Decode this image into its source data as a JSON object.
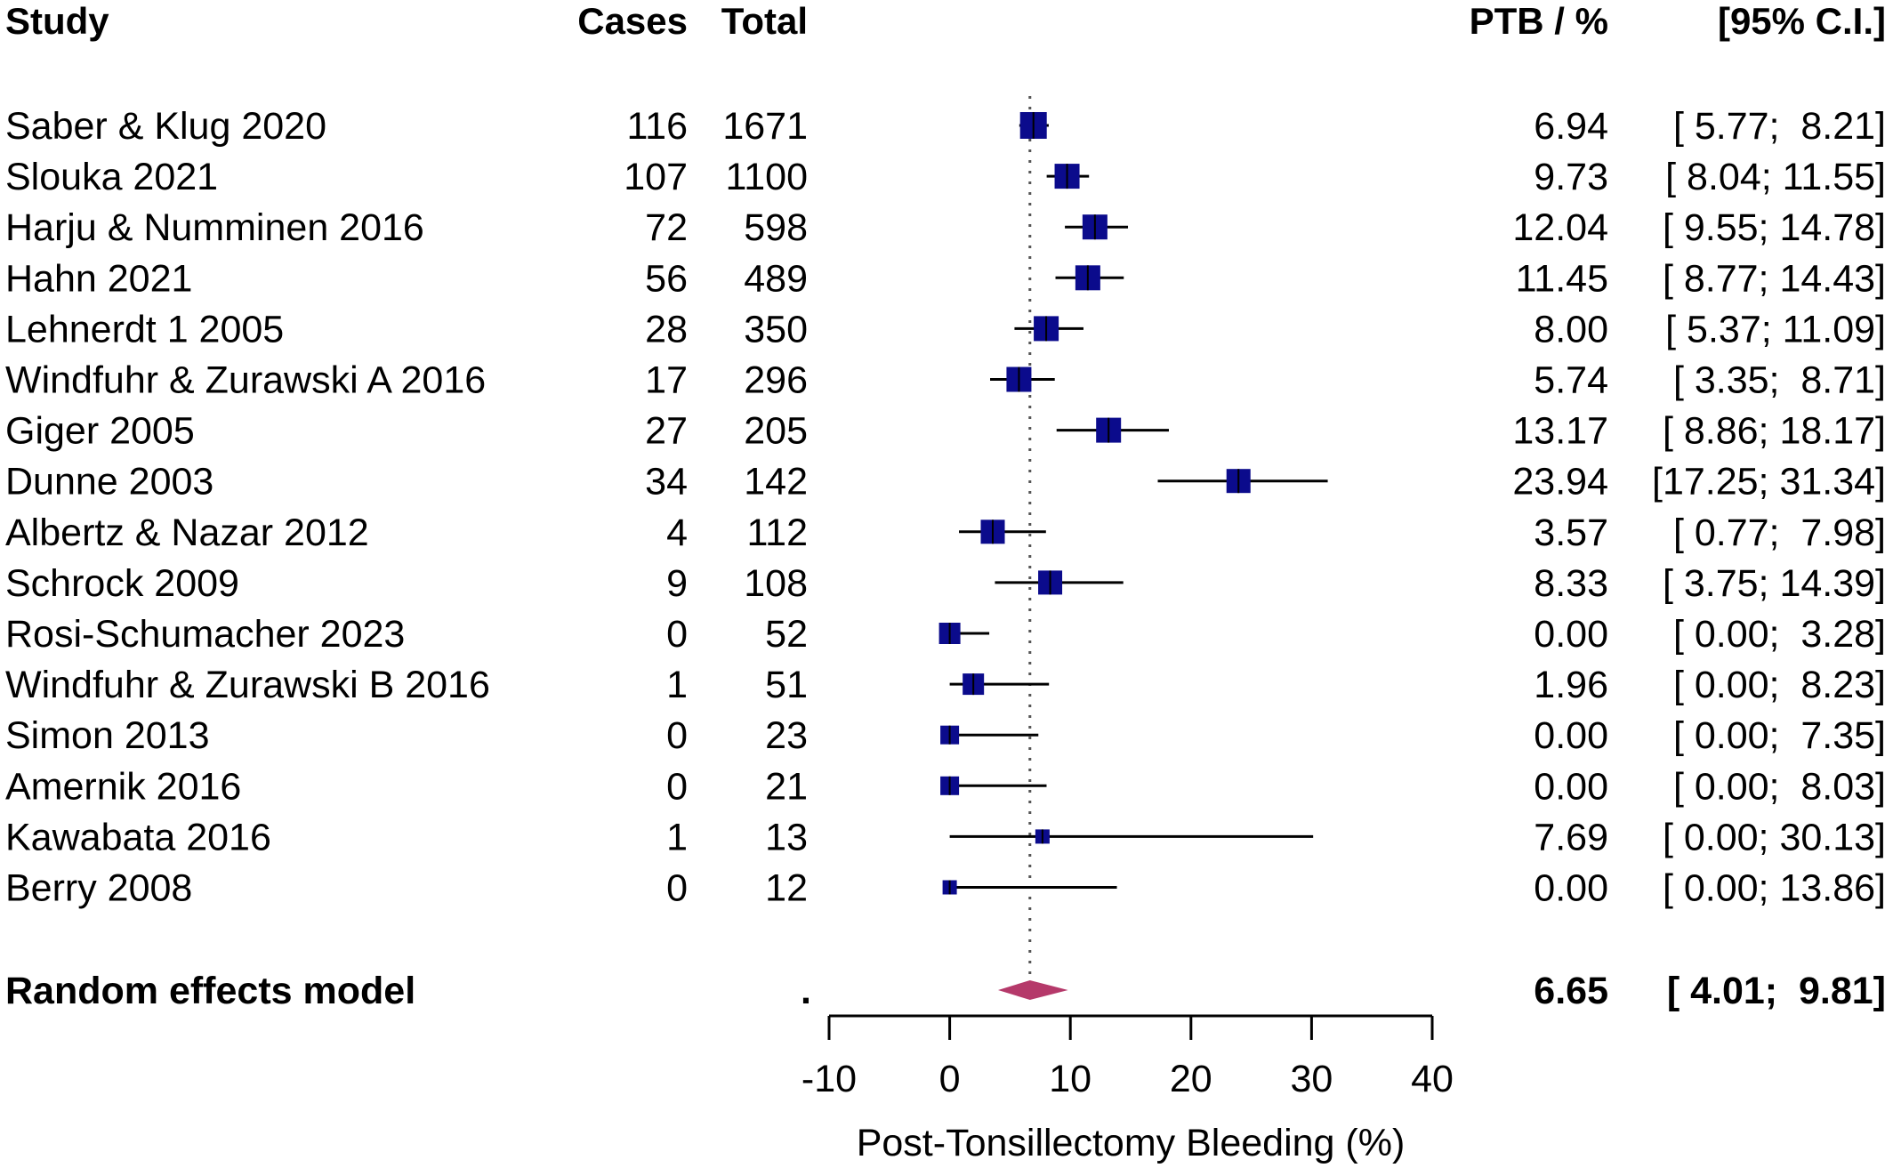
{
  "headers": {
    "study": "Study",
    "cases": "Cases",
    "total": "Total",
    "ptb": "PTB / %",
    "ci": "[95% C.I.]"
  },
  "chart_data": {
    "type": "forest",
    "xlabel": "Post-Tonsillectomy Bleeding (%)",
    "xlim": [
      -10,
      40
    ],
    "xticks": [
      "-10",
      "0",
      "10",
      "20",
      "30",
      "40"
    ],
    "studies": [
      {
        "name": "Saber & Klug 2020",
        "cases": "116",
        "total": "1671",
        "est": 6.94,
        "lo": 5.77,
        "hi": 8.21,
        "est_text": "6.94",
        "ci_text": "[ 5.77;  8.21]",
        "box": 30
      },
      {
        "name": "Slouka 2021",
        "cases": "107",
        "total": "1100",
        "est": 9.73,
        "lo": 8.04,
        "hi": 11.55,
        "est_text": "9.73",
        "ci_text": "[ 8.04; 11.55]",
        "box": 28
      },
      {
        "name": "Harju & Numminen 2016",
        "cases": "72",
        "total": "598",
        "est": 12.04,
        "lo": 9.55,
        "hi": 14.78,
        "est_text": "12.04",
        "ci_text": "[ 9.55; 14.78]",
        "box": 28
      },
      {
        "name": "Hahn 2021",
        "cases": "56",
        "total": "489",
        "est": 11.45,
        "lo": 8.77,
        "hi": 14.43,
        "est_text": "11.45",
        "ci_text": "[ 8.77; 14.43]",
        "box": 28
      },
      {
        "name": "Lehnerdt 1 2005",
        "cases": "28",
        "total": "350",
        "est": 8.0,
        "lo": 5.37,
        "hi": 11.09,
        "est_text": "8.00",
        "ci_text": "[ 5.37; 11.09]",
        "box": 28
      },
      {
        "name": "Windfuhr & Zurawski A 2016",
        "cases": "17",
        "total": "296",
        "est": 5.74,
        "lo": 3.35,
        "hi": 8.71,
        "est_text": "5.74",
        "ci_text": "[ 3.35;  8.71]",
        "box": 28
      },
      {
        "name": "Giger 2005",
        "cases": "27",
        "total": "205",
        "est": 13.17,
        "lo": 8.86,
        "hi": 18.17,
        "est_text": "13.17",
        "ci_text": "[ 8.86; 18.17]",
        "box": 28
      },
      {
        "name": "Dunne 2003",
        "cases": "34",
        "total": "142",
        "est": 23.94,
        "lo": 17.25,
        "hi": 31.34,
        "est_text": "23.94",
        "ci_text": "[17.25; 31.34]",
        "box": 27
      },
      {
        "name": "Albertz & Nazar 2012",
        "cases": "4",
        "total": "112",
        "est": 3.57,
        "lo": 0.77,
        "hi": 7.98,
        "est_text": "3.57",
        "ci_text": "[ 0.77;  7.98]",
        "box": 27
      },
      {
        "name": "Schrock 2009",
        "cases": "9",
        "total": "108",
        "est": 8.33,
        "lo": 3.75,
        "hi": 14.39,
        "est_text": "8.33",
        "ci_text": "[ 3.75; 14.39]",
        "box": 27
      },
      {
        "name": "Rosi-Schumacher 2023",
        "cases": "0",
        "total": "52",
        "est": 0.0,
        "lo": 0.0,
        "hi": 3.28,
        "est_text": "0.00",
        "ci_text": "[ 0.00;  3.28]",
        "box": 24
      },
      {
        "name": "Windfuhr & Zurawski B 2016",
        "cases": "1",
        "total": "51",
        "est": 1.96,
        "lo": 0.0,
        "hi": 8.23,
        "est_text": "1.96",
        "ci_text": "[ 0.00;  8.23]",
        "box": 24
      },
      {
        "name": "Simon 2013",
        "cases": "0",
        "total": "23",
        "est": 0.0,
        "lo": 0.0,
        "hi": 7.35,
        "est_text": "0.00",
        "ci_text": "[ 0.00;  7.35]",
        "box": 21
      },
      {
        "name": "Amernik 2016",
        "cases": "0",
        "total": "21",
        "est": 0.0,
        "lo": 0.0,
        "hi": 8.03,
        "est_text": "0.00",
        "ci_text": "[ 0.00;  8.03]",
        "box": 21
      },
      {
        "name": "Kawabata 2016",
        "cases": "1",
        "total": "13",
        "est": 7.69,
        "lo": 0.0,
        "hi": 30.13,
        "est_text": "7.69",
        "ci_text": "[ 0.00; 30.13]",
        "box": 16
      },
      {
        "name": "Berry 2008",
        "cases": "0",
        "total": "12",
        "est": 0.0,
        "lo": 0.0,
        "hi": 13.86,
        "est_text": "0.00",
        "ci_text": "[ 0.00; 13.86]",
        "box": 16
      }
    ],
    "pooled": {
      "label": "Random effects model",
      "est": 6.65,
      "lo": 4.01,
      "hi": 9.81,
      "est_text": "6.65",
      "ci_text": "[ 4.01;  9.81]",
      "dot": "."
    }
  },
  "colors": {
    "box": "#0b0b8c",
    "diamond": "#b5396a",
    "ci_line": "#000000",
    "ref_line": "#555555"
  }
}
